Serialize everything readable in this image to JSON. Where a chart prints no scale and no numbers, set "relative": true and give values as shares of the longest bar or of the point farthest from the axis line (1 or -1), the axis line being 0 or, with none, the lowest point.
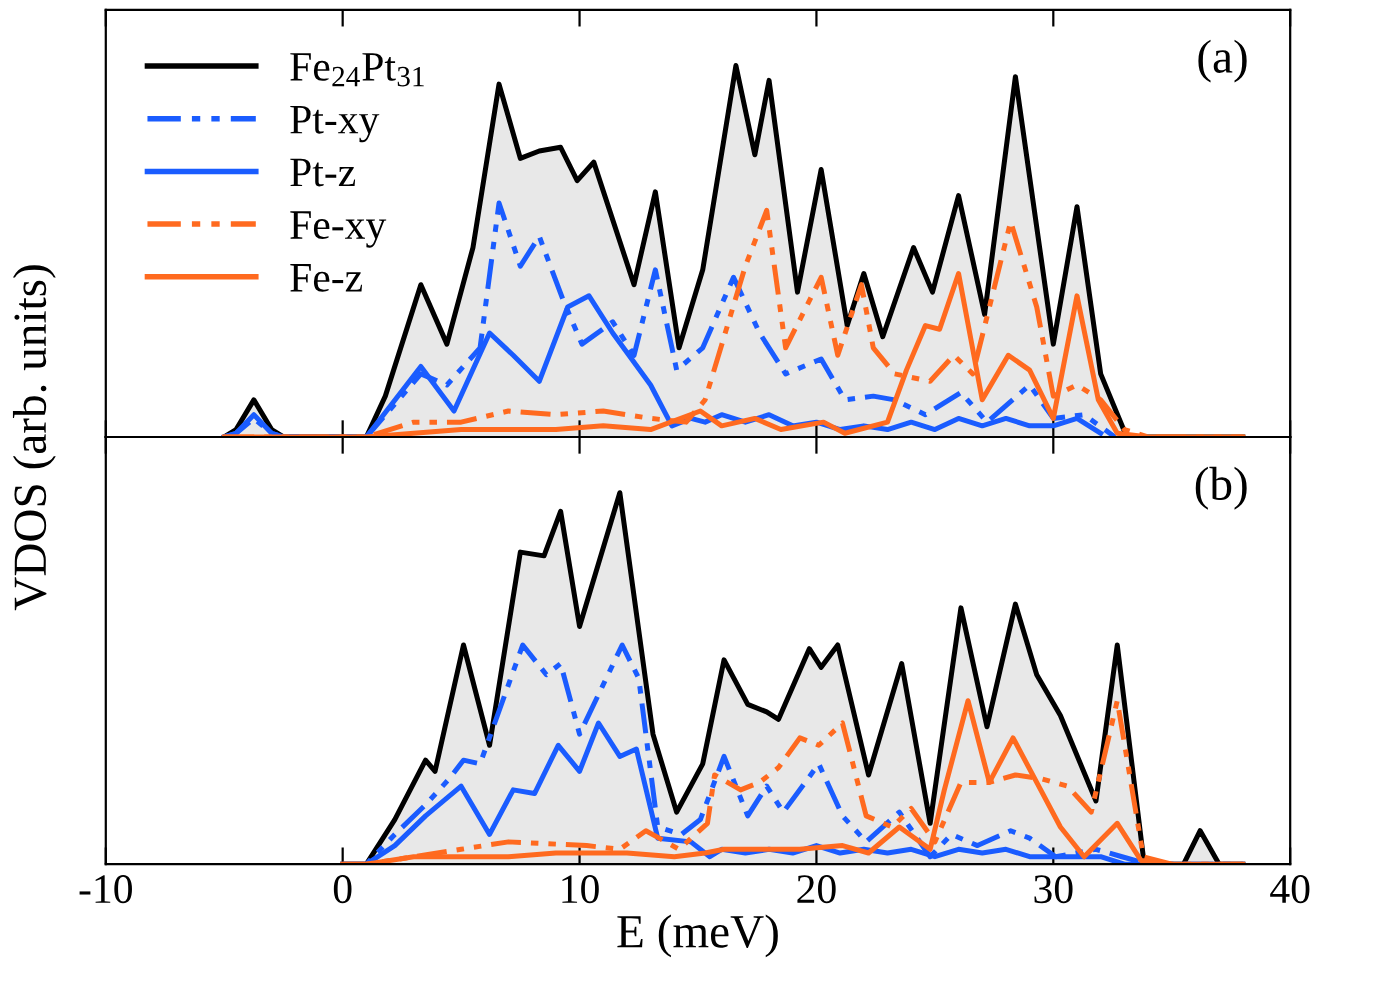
{
  "chart_data": [
    {
      "type": "line",
      "relative": true,
      "ylabel": "VDOS (arb. units)",
      "xlim": [
        -10,
        40
      ],
      "xticks": [
        -10,
        0,
        10,
        20,
        30,
        40
      ],
      "tick_labels": false,
      "legend": "top left",
      "grid": false,
      "annotations": [
        "(a)"
      ],
      "series": [
        {
          "name": "Fe$_{24}$Pt$_{31}$",
          "type": "area",
          "color": "#000000",
          "line_style": "solid",
          "x": [
            -5,
            -4.5,
            -3.75,
            -3,
            -2.5,
            1.0,
            1.8,
            3.3,
            4.4,
            5.5,
            6.6,
            7.5,
            8.3,
            9.2,
            9.9,
            10.6,
            12.3,
            13.2,
            14.2,
            15.2,
            16.6,
            17.4,
            18.0,
            19.2,
            20.2,
            21.3,
            22.0,
            22.8,
            24.1,
            24.9,
            26.0,
            27.1,
            28.4,
            30.0,
            31.0,
            32.0,
            33.1,
            38
          ],
          "values": [
            0,
            0.02,
            0.1,
            0.02,
            0,
            0,
            0.11,
            0.41,
            0.25,
            0.51,
            0.95,
            0.75,
            0.77,
            0.78,
            0.69,
            0.74,
            0.41,
            0.66,
            0.24,
            0.45,
            1.0,
            0.76,
            0.96,
            0.39,
            0.72,
            0.3,
            0.44,
            0.27,
            0.51,
            0.39,
            0.65,
            0.33,
            0.97,
            0.25,
            0.62,
            0.17,
            0,
            0
          ]
        },
        {
          "name": "Pt-xy",
          "color": "#1a5cff",
          "line_style": "dashdot",
          "x": [
            -5,
            -4.5,
            -3.75,
            -3,
            -2.5,
            1.0,
            3.3,
            4.4,
            5.8,
            6.6,
            7.5,
            8.3,
            9.3,
            10.1,
            11.4,
            12.3,
            13.2,
            14.1,
            15.2,
            16.5,
            17.6,
            18.7,
            20.2,
            21.2,
            22.4,
            23.3,
            24.6,
            26.1,
            27.2,
            29.0,
            30.0,
            31.3,
            32.6
          ],
          "values": [
            0,
            0.01,
            0.05,
            0.01,
            0,
            0,
            0.17,
            0.14,
            0.24,
            0.63,
            0.46,
            0.54,
            0.37,
            0.25,
            0.31,
            0.22,
            0.45,
            0.18,
            0.24,
            0.43,
            0.28,
            0.17,
            0.21,
            0.1,
            0.11,
            0.1,
            0.06,
            0.12,
            0.04,
            0.14,
            0.05,
            0.06,
            0
          ]
        },
        {
          "name": "Pt-z",
          "color": "#1a5cff",
          "line_style": "solid",
          "x": [
            -5,
            -4.5,
            -3.75,
            -3,
            -2.5,
            1.0,
            3.3,
            4.7,
            6.2,
            7.2,
            8.3,
            9.5,
            10.4,
            11.4,
            13.0,
            13.9,
            14.7,
            15.3,
            16,
            17,
            18,
            19,
            20,
            21,
            22,
            23,
            24,
            25,
            26,
            27,
            28,
            29,
            30,
            31,
            32
          ],
          "values": [
            0,
            0.01,
            0.06,
            0.01,
            0,
            0,
            0.19,
            0.07,
            0.28,
            0.22,
            0.15,
            0.35,
            0.38,
            0.28,
            0.14,
            0.03,
            0.05,
            0.04,
            0.06,
            0.04,
            0.06,
            0.03,
            0.04,
            0.02,
            0.03,
            0.02,
            0.04,
            0.02,
            0.05,
            0.03,
            0.05,
            0.03,
            0.03,
            0.05,
            0.01
          ]
        },
        {
          "name": "Fe-xy",
          "color": "#ff6a1f",
          "line_style": "dashdot",
          "x": [
            -5,
            1,
            3,
            5,
            7,
            9,
            11,
            13,
            14.5,
            15.3,
            17.0,
            17.9,
            18.7,
            20.2,
            20.9,
            21.9,
            22.4,
            23.3,
            24.8,
            25.8,
            26.6,
            28.2,
            29.3,
            30,
            31,
            32,
            33,
            34,
            38
          ],
          "values": [
            0,
            0,
            0.04,
            0.04,
            0.07,
            0.06,
            0.07,
            0.05,
            0.04,
            0.1,
            0.46,
            0.61,
            0.24,
            0.43,
            0.22,
            0.41,
            0.24,
            0.17,
            0.15,
            0.22,
            0.17,
            0.58,
            0.35,
            0.11,
            0.14,
            0.1,
            0.02,
            0,
            0
          ]
        },
        {
          "name": "Fe-z",
          "color": "#ff6a1f",
          "line_style": "solid",
          "x": [
            -5,
            1,
            3,
            5,
            7,
            9,
            11,
            13,
            15.1,
            16,
            17.4,
            18.5,
            20.3,
            21.2,
            23,
            23.8,
            24.6,
            25.2,
            26,
            27,
            28.1,
            29,
            30,
            31,
            31.9,
            32.7,
            34,
            38
          ],
          "values": [
            0,
            0,
            0.01,
            0.02,
            0.02,
            0.02,
            0.03,
            0.02,
            0.07,
            0.03,
            0.05,
            0.02,
            0.04,
            0.01,
            0.04,
            0.18,
            0.3,
            0.29,
            0.44,
            0.1,
            0.22,
            0.18,
            0.05,
            0.38,
            0.1,
            0.01,
            0,
            0
          ]
        }
      ]
    },
    {
      "type": "line",
      "relative": true,
      "xlabel": "E (meV)",
      "xlim": [
        -10,
        40
      ],
      "xticks": [
        -10,
        0,
        10,
        20,
        30,
        40
      ],
      "tick_labels": "x",
      "grid": false,
      "annotations": [
        "(b)"
      ],
      "series": [
        {
          "type": "area",
          "color": "#000000",
          "line_style": "solid",
          "x": [
            0,
            1.0,
            2.2,
            3.5,
            3.9,
            5.1,
            6.2,
            7.5,
            8.5,
            9.2,
            10.0,
            11.7,
            13.1,
            14.1,
            15.2,
            16.1,
            17.1,
            17.9,
            18.4,
            19.7,
            20.2,
            20.9,
            22.2,
            23.6,
            24.8,
            26.1,
            27.2,
            28.4,
            29.3,
            30.3,
            31.8,
            32.7,
            33.8,
            34.5,
            35.5,
            36.2,
            37,
            38
          ],
          "values": [
            0,
            0,
            0.12,
            0.28,
            0.25,
            0.59,
            0.32,
            0.84,
            0.83,
            0.95,
            0.64,
            1.0,
            0.35,
            0.14,
            0.27,
            0.55,
            0.43,
            0.41,
            0.39,
            0.58,
            0.53,
            0.59,
            0.24,
            0.54,
            0.11,
            0.69,
            0.37,
            0.7,
            0.51,
            0.4,
            0.17,
            0.59,
            0.02,
            0,
            0,
            0.09,
            0,
            0
          ]
        },
        {
          "color": "#1a5cff",
          "line_style": "dashdot",
          "x": [
            0,
            1,
            2.2,
            3.5,
            4.5,
            5.1,
            5.8,
            7.6,
            8.6,
            9.2,
            10,
            11.8,
            12.5,
            13.3,
            14.3,
            15.1,
            16.1,
            17.1,
            17.9,
            18.6,
            20.1,
            21.1,
            22.1,
            23.5,
            24.8,
            25.7,
            26.8,
            28.2,
            29,
            30.1,
            31.8,
            32.9,
            34,
            38
          ],
          "values": [
            0,
            0,
            0.08,
            0.16,
            0.23,
            0.28,
            0.27,
            0.59,
            0.51,
            0.54,
            0.35,
            0.59,
            0.5,
            0.1,
            0.08,
            0.12,
            0.29,
            0.13,
            0.21,
            0.14,
            0.27,
            0.13,
            0.06,
            0.14,
            0.02,
            0.08,
            0.05,
            0.09,
            0.07,
            0.02,
            0.04,
            0.02,
            0,
            0
          ]
        },
        {
          "color": "#1a5cff",
          "line_style": "solid",
          "x": [
            0,
            1,
            2.2,
            3.5,
            5.0,
            6.2,
            7.2,
            8.1,
            9.1,
            10,
            10.8,
            11.7,
            12.4,
            13.3,
            14.7,
            15.5,
            16,
            17,
            18,
            19,
            20,
            21,
            22,
            23,
            24,
            25,
            26,
            27,
            28,
            29,
            30,
            31,
            32,
            33,
            38
          ],
          "values": [
            0,
            0,
            0.05,
            0.13,
            0.21,
            0.08,
            0.2,
            0.19,
            0.32,
            0.25,
            0.38,
            0.29,
            0.31,
            0.07,
            0.06,
            0.02,
            0.04,
            0.03,
            0.04,
            0.03,
            0.05,
            0.03,
            0.04,
            0.03,
            0.04,
            0.02,
            0.04,
            0.03,
            0.04,
            0.02,
            0.02,
            0.02,
            0.02,
            0,
            0
          ]
        },
        {
          "color": "#ff6a1f",
          "line_style": "dashdot",
          "x": [
            0,
            1,
            3,
            5,
            7,
            10.3,
            11.7,
            12.8,
            14.2,
            15.4,
            15.7,
            16.8,
            17.6,
            18.4,
            19.3,
            20.1,
            21.1,
            22.1,
            23.2,
            24,
            25,
            26.1,
            27.3,
            28.4,
            29.5,
            30.6,
            31.6,
            32.7,
            33.8,
            35,
            38
          ],
          "values": [
            0,
            0,
            0.02,
            0.04,
            0.06,
            0.05,
            0.04,
            0.09,
            0.04,
            0.11,
            0.24,
            0.2,
            0.22,
            0.26,
            0.34,
            0.32,
            0.38,
            0.13,
            0.1,
            0.15,
            0.06,
            0.22,
            0.22,
            0.24,
            0.23,
            0.21,
            0.14,
            0.44,
            0.02,
            0,
            0
          ]
        },
        {
          "color": "#ff6a1f",
          "line_style": "solid",
          "x": [
            0,
            1,
            3,
            5,
            7,
            9,
            12,
            14,
            15.3,
            16.1,
            17.5,
            19.3,
            21.1,
            22.2,
            23.5,
            24.8,
            25.4,
            26.4,
            27.3,
            28.3,
            29.3,
            30.3,
            31.3,
            32.7,
            33.7,
            35,
            38
          ],
          "values": [
            0,
            0,
            0.02,
            0.02,
            0.02,
            0.03,
            0.03,
            0.02,
            0.03,
            0.04,
            0.04,
            0.04,
            0.05,
            0.03,
            0.1,
            0.04,
            0.2,
            0.44,
            0.22,
            0.34,
            0.22,
            0.1,
            0.02,
            0.11,
            0.01,
            0,
            0
          ]
        }
      ]
    }
  ]
}
